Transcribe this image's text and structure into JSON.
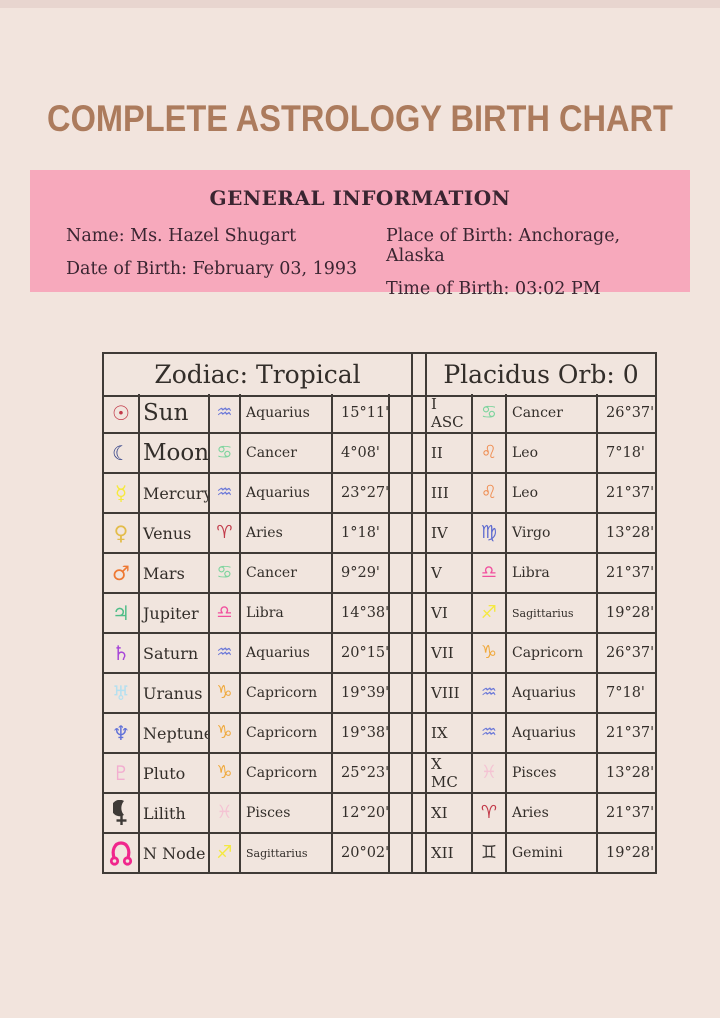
{
  "page": {
    "title": "COMPLETE ASTROLOGY BIRTH CHART",
    "background_color": "#f2e4dd",
    "title_color": "#ac7b5d"
  },
  "general_info": {
    "heading": "GENERAL INFORMATION",
    "box_color": "#f7a9bc",
    "fields": [
      {
        "label": "Name",
        "value": "Ms. Hazel Shugart"
      },
      {
        "label": "Date of Birth",
        "value": "February 03, 1993"
      },
      {
        "label": "Place of Birth",
        "value": "Anchorage, Alaska"
      },
      {
        "label": "Time of Birth",
        "value": "03:02 PM"
      }
    ]
  },
  "zodiac_table": {
    "header": "Zodiac: Tropical",
    "rows": [
      {
        "planet": "Sun",
        "sign": "Aquarius",
        "degrees": "15°11'"
      },
      {
        "planet": "Moon",
        "sign": "Cancer",
        "degrees": "4°08'"
      },
      {
        "planet": "Mercury",
        "sign": "Aquarius",
        "degrees": "23°27'"
      },
      {
        "planet": "Venus",
        "sign": "Aries",
        "degrees": "1°18'"
      },
      {
        "planet": "Mars",
        "sign": "Cancer",
        "degrees": "9°29'"
      },
      {
        "planet": "Jupiter",
        "sign": "Libra",
        "degrees": "14°38'"
      },
      {
        "planet": "Saturn",
        "sign": "Aquarius",
        "degrees": "20°15'"
      },
      {
        "planet": "Uranus",
        "sign": "Capricorn",
        "degrees": "19°39'"
      },
      {
        "planet": "Neptune",
        "sign": "Capricorn",
        "degrees": "19°38'"
      },
      {
        "planet": "Pluto",
        "sign": "Capricorn",
        "degrees": "25°23'"
      },
      {
        "planet": "Lilith",
        "sign": "Pisces",
        "degrees": "12°20'"
      },
      {
        "planet": "N Node",
        "sign": "Sagittarius",
        "degrees": "20°02'"
      }
    ]
  },
  "houses_table": {
    "header": "Placidus Orb: 0",
    "rows": [
      {
        "house": "I ASC",
        "sign": "Cancer",
        "degrees": "26°37'"
      },
      {
        "house": "II",
        "sign": "Leo",
        "degrees": "7°18'"
      },
      {
        "house": "III",
        "sign": "Leo",
        "degrees": "21°37'"
      },
      {
        "house": "IV",
        "sign": "Virgo",
        "degrees": "13°28'"
      },
      {
        "house": "V",
        "sign": "Libra",
        "degrees": "21°37'"
      },
      {
        "house": "VI",
        "sign": "Sagittarius",
        "degrees": "19°28'"
      },
      {
        "house": "VII",
        "sign": "Capricorn",
        "degrees": "26°37'"
      },
      {
        "house": "VIII",
        "sign": "Aquarius",
        "degrees": "7°18'"
      },
      {
        "house": "IX",
        "sign": "Aquarius",
        "degrees": "21°37'"
      },
      {
        "house": "X MC",
        "sign": "Pisces",
        "degrees": "13°28'"
      },
      {
        "house": "XI",
        "sign": "Aries",
        "degrees": "21°37'"
      },
      {
        "house": "XII",
        "sign": "Gemini",
        "degrees": "19°28'"
      }
    ]
  },
  "icons": {
    "glyphs": {
      "sun": "☉",
      "moon": "☾",
      "mercury": "☿",
      "venus": "♀",
      "mars": "♂",
      "jupiter": "♃",
      "saturn": "♄",
      "uranus": "♅",
      "neptune": "♆",
      "pluto": "♇",
      "aries": "♈",
      "gemini": "♊",
      "cancer": "♋",
      "leo": "♌",
      "virgo": "♍",
      "libra": "♎",
      "sagittarius": "♐",
      "capricorn": "♑",
      "aquarius": "♒",
      "pisces": "♓"
    },
    "colors": {
      "sun": "#c23a49",
      "moon": "#2a3a84",
      "mercury": "#f6e93d",
      "venus": "#e3bc4a",
      "mars": "#ee7832",
      "jupiter": "#50bd88",
      "saturn": "#a746d8",
      "uranus": "#b5e0f0",
      "neptune": "#6272d8",
      "pluto": "#f2aed0",
      "lilith": "#3e3a37",
      "nnode": "#f0268c",
      "aries": "#c23a49",
      "gemini": "#3e3a37",
      "cancer": "#7ed49e",
      "leo": "#ef8b4e",
      "virgo": "#5f6cd0",
      "libra": "#f14f9e",
      "sagittarius": "#f4e940",
      "capricorn": "#f0a93c",
      "aquarius": "#6b78d8",
      "pisces": "#f4c3d3"
    }
  }
}
